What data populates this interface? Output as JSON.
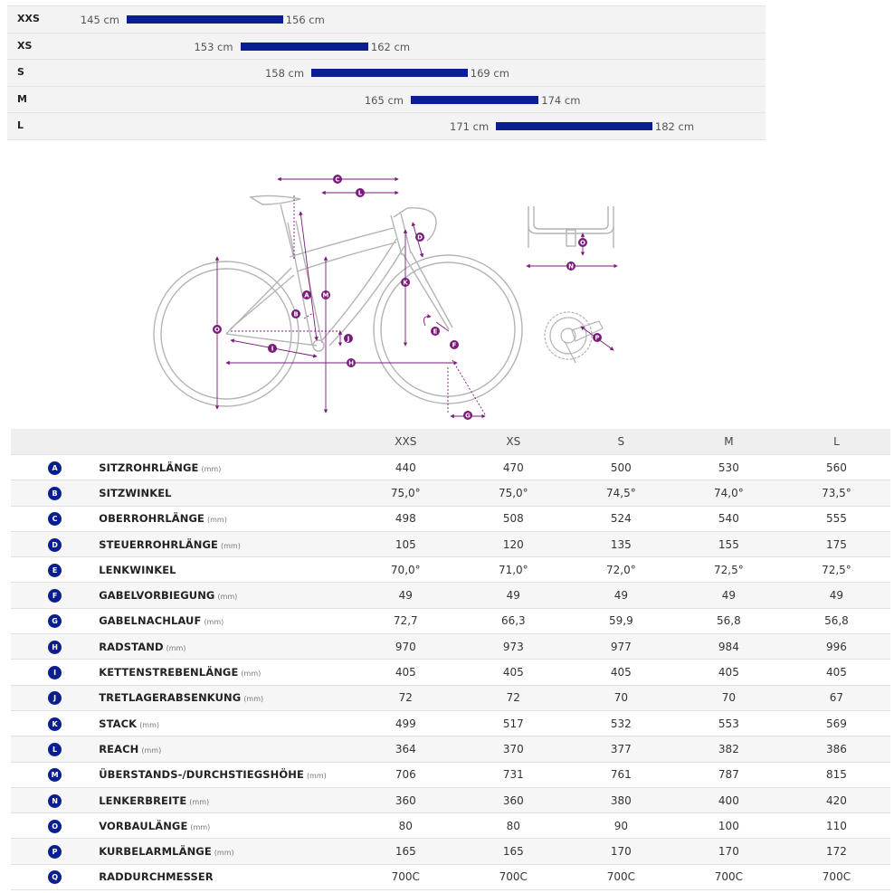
{
  "size_range": [
    {
      "size": "XXS",
      "min": "145 cm",
      "max": "156 cm",
      "min_cm": 145,
      "max_cm": 156
    },
    {
      "size": "XS",
      "min": "153 cm",
      "max": "162 cm",
      "min_cm": 153,
      "max_cm": 162
    },
    {
      "size": "S",
      "min": "158 cm",
      "max": "169 cm",
      "min_cm": 158,
      "max_cm": 169
    },
    {
      "size": "M",
      "min": "165 cm",
      "max": "174 cm",
      "min_cm": 165,
      "max_cm": 174
    },
    {
      "size": "L",
      "min": "171 cm",
      "max": "182 cm",
      "min_cm": 171,
      "max_cm": 182
    }
  ],
  "colors": {
    "bar": "#0a1e8f",
    "dimension": "#7a1a7a",
    "bike": "#b4b4b4"
  },
  "diagram": {
    "main_letters": [
      "C",
      "L",
      "D",
      "A",
      "M",
      "K",
      "B",
      "O",
      "J",
      "E",
      "F",
      "I",
      "H",
      "G"
    ],
    "handlebar_letters": [
      "O",
      "N"
    ],
    "crank_letters": [
      "P"
    ]
  },
  "table": {
    "sizes": [
      "XXS",
      "XS",
      "S",
      "M",
      "L"
    ],
    "rows": [
      {
        "letter": "A",
        "name": "SITZROHRLÄNGE",
        "unit": "(mm)",
        "values": [
          "440",
          "470",
          "500",
          "530",
          "560"
        ]
      },
      {
        "letter": "B",
        "name": "SITZWINKEL",
        "unit": "",
        "values": [
          "75,0°",
          "75,0°",
          "74,5°",
          "74,0°",
          "73,5°"
        ]
      },
      {
        "letter": "C",
        "name": "OBERROHRLÄNGE",
        "unit": "(mm)",
        "values": [
          "498",
          "508",
          "524",
          "540",
          "555"
        ]
      },
      {
        "letter": "D",
        "name": "STEUERROHRLÄNGE",
        "unit": "(mm)",
        "values": [
          "105",
          "120",
          "135",
          "155",
          "175"
        ]
      },
      {
        "letter": "E",
        "name": "LENKWINKEL",
        "unit": "",
        "values": [
          "70,0°",
          "71,0°",
          "72,0°",
          "72,5°",
          "72,5°"
        ]
      },
      {
        "letter": "F",
        "name": "GABELVORBIEGUNG",
        "unit": "(mm)",
        "values": [
          "49",
          "49",
          "49",
          "49",
          "49"
        ]
      },
      {
        "letter": "G",
        "name": "GABELNACHLAUF",
        "unit": "(mm)",
        "values": [
          "72,7",
          "66,3",
          "59,9",
          "56,8",
          "56,8"
        ]
      },
      {
        "letter": "H",
        "name": "RADSTAND",
        "unit": "(mm)",
        "values": [
          "970",
          "973",
          "977",
          "984",
          "996"
        ]
      },
      {
        "letter": "I",
        "name": "KETTENSTREBENLÄNGE",
        "unit": "(mm)",
        "values": [
          "405",
          "405",
          "405",
          "405",
          "405"
        ]
      },
      {
        "letter": "J",
        "name": "TRETLAGERABSENKUNG",
        "unit": "(mm)",
        "values": [
          "72",
          "72",
          "70",
          "70",
          "67"
        ]
      },
      {
        "letter": "K",
        "name": "STACK",
        "unit": "(mm)",
        "values": [
          "499",
          "517",
          "532",
          "553",
          "569"
        ]
      },
      {
        "letter": "L",
        "name": "REACH",
        "unit": "(mm)",
        "values": [
          "364",
          "370",
          "377",
          "382",
          "386"
        ]
      },
      {
        "letter": "M",
        "name": "ÜBERSTANDS-/DURCHSTIEGSHÖHE",
        "unit": "(mm)",
        "values": [
          "706",
          "731",
          "761",
          "787",
          "815"
        ]
      },
      {
        "letter": "N",
        "name": "LENKERBREITE",
        "unit": "(mm)",
        "values": [
          "360",
          "360",
          "380",
          "400",
          "420"
        ]
      },
      {
        "letter": "O",
        "name": "VORBAULÄNGE",
        "unit": "(mm)",
        "values": [
          "80",
          "80",
          "90",
          "100",
          "110"
        ]
      },
      {
        "letter": "P",
        "name": "KURBELARMLÄNGE",
        "unit": "(mm)",
        "values": [
          "165",
          "165",
          "170",
          "170",
          "172"
        ]
      },
      {
        "letter": "Q",
        "name": "RADDURCHMESSER",
        "unit": "",
        "values": [
          "700C",
          "700C",
          "700C",
          "700C",
          "700C"
        ]
      }
    ]
  }
}
